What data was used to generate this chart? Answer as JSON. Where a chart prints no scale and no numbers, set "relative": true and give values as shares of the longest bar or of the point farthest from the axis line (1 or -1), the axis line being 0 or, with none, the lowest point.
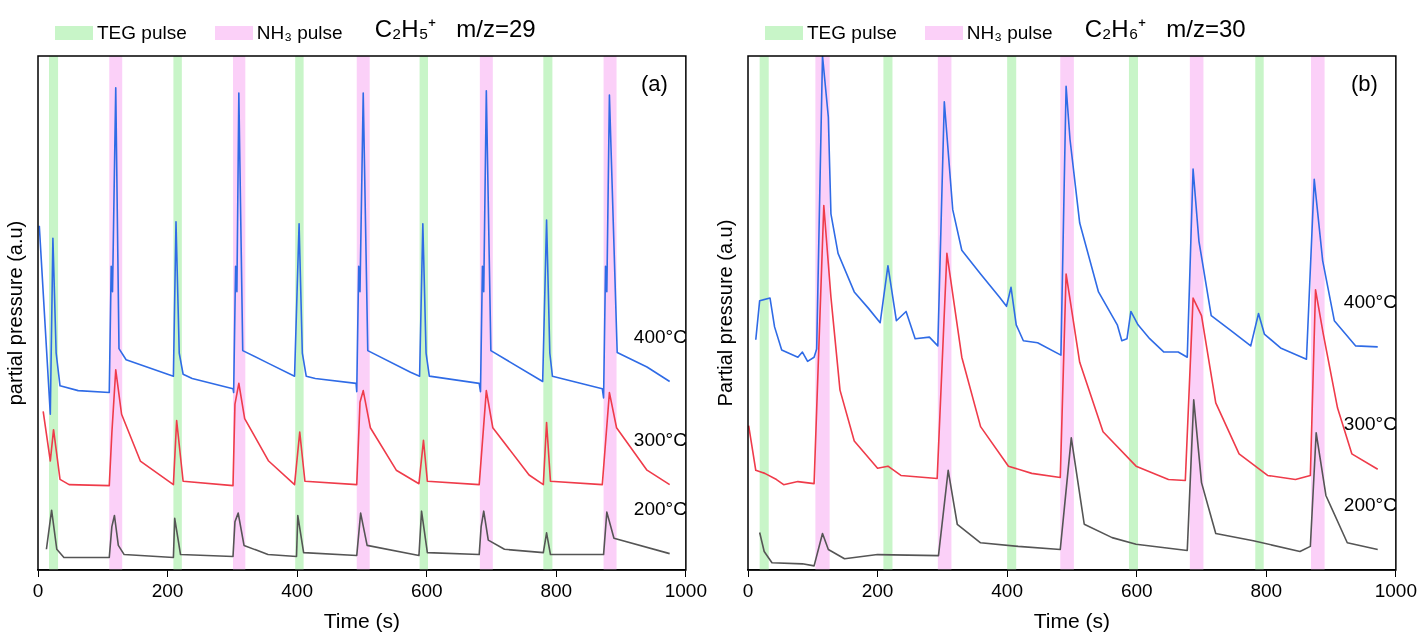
{
  "chart_data": [
    {
      "type": "line",
      "title": "C₂H₅⁺   m/z=29",
      "xlabel": "Time (s)",
      "ylabel": "partial pressure (a.u)",
      "relative": true,
      "xlim": [
        0,
        1000
      ],
      "xticks": [
        0,
        200,
        400,
        600,
        800,
        1000
      ],
      "grid": false,
      "legend": "top",
      "marker": "none",
      "line_style": "solid",
      "annotations": [
        "(a)"
      ],
      "bands": [
        {
          "axis": "x",
          "from": 17,
          "to": 31,
          "label": "TEG pulse",
          "color": "#c8f5c8"
        },
        {
          "axis": "x",
          "from": 110,
          "to": 130,
          "label": "NH₃ pulse",
          "color": "#fbd0f8"
        },
        {
          "axis": "x",
          "from": 209,
          "to": 222,
          "color": "#c8f5c8"
        },
        {
          "axis": "x",
          "from": 301,
          "to": 320,
          "color": "#fbd0f8"
        },
        {
          "axis": "x",
          "from": 397,
          "to": 410,
          "color": "#c8f5c8"
        },
        {
          "axis": "x",
          "from": 492,
          "to": 512,
          "color": "#fbd0f8"
        },
        {
          "axis": "x",
          "from": 589,
          "to": 602,
          "color": "#c8f5c8"
        },
        {
          "axis": "x",
          "from": 682,
          "to": 702,
          "color": "#fbd0f8"
        },
        {
          "axis": "x",
          "from": 780,
          "to": 794,
          "color": "#c8f5c8"
        },
        {
          "axis": "x",
          "from": 873,
          "to": 893,
          "color": "#fbd0f8"
        }
      ],
      "series": [
        {
          "name": "400°C",
          "color": "#2f6be6",
          "x": [
            2,
            19,
            23,
            28,
            34,
            62,
            110,
            113,
            115,
            120,
            125,
            136,
            209,
            213,
            218,
            224,
            238,
            301,
            302,
            305,
            307,
            310,
            316,
            355,
            396,
            403,
            408,
            414,
            428,
            491,
            492,
            495,
            497,
            502,
            509,
            575,
            589,
            594,
            599,
            604,
            681,
            683,
            686,
            688,
            692,
            699,
            779,
            785,
            790,
            794,
            871,
            873,
            876,
            878,
            882,
            894,
            940,
            975
          ],
          "values": [
            0.714,
            0.323,
            0.688,
            0.45,
            0.382,
            0.372,
            0.368,
            0.63,
            0.577,
            1.0,
            0.459,
            0.436,
            0.402,
            0.722,
            0.45,
            0.406,
            0.397,
            0.376,
            0.368,
            0.63,
            0.577,
            0.989,
            0.455,
            0.429,
            0.402,
            0.718,
            0.45,
            0.402,
            0.397,
            0.387,
            0.37,
            0.63,
            0.577,
            0.989,
            0.455,
            0.41,
            0.402,
            0.718,
            0.45,
            0.402,
            0.387,
            0.37,
            0.63,
            0.577,
            0.994,
            0.455,
            0.391,
            0.726,
            0.45,
            0.402,
            0.376,
            0.357,
            0.63,
            0.577,
            0.985,
            0.451,
            0.421,
            0.391
          ]
        },
        {
          "name": "300°C",
          "color": "#ef3b4a",
          "x": [
            8,
            19,
            24,
            34,
            48,
            110,
            114,
            120,
            129,
            158,
            209,
            214,
            224,
            301,
            304,
            310,
            319,
            356,
            396,
            404,
            412,
            492,
            497,
            502,
            513,
            553,
            588,
            595,
            601,
            681,
            692,
            702,
            758,
            780,
            785,
            791,
            871,
            882,
            893,
            940,
            975
          ],
          "values": [
            0.329,
            0.226,
            0.291,
            0.188,
            0.177,
            0.175,
            0.284,
            0.415,
            0.323,
            0.226,
            0.177,
            0.31,
            0.184,
            0.175,
            0.344,
            0.387,
            0.314,
            0.226,
            0.177,
            0.286,
            0.184,
            0.177,
            0.348,
            0.372,
            0.295,
            0.207,
            0.179,
            0.269,
            0.184,
            0.177,
            0.372,
            0.295,
            0.197,
            0.177,
            0.306,
            0.184,
            0.177,
            0.368,
            0.295,
            0.207,
            0.177
          ]
        },
        {
          "name": "200°C",
          "color": "#555555",
          "x": [
            13,
            21,
            29,
            40,
            110,
            114,
            118,
            124,
            133,
            209,
            211,
            220,
            301,
            304,
            309,
            318,
            355,
            399,
            401,
            410,
            492,
            498,
            508,
            588,
            592,
            601,
            681,
            684,
            688,
            695,
            720,
            780,
            785,
            791,
            873,
            878,
            889,
            975
          ],
          "values": [
            0.043,
            0.124,
            0.043,
            0.026,
            0.026,
            0.09,
            0.113,
            0.051,
            0.032,
            0.026,
            0.107,
            0.032,
            0.028,
            0.1,
            0.118,
            0.051,
            0.032,
            0.028,
            0.113,
            0.036,
            0.03,
            0.118,
            0.051,
            0.03,
            0.122,
            0.036,
            0.032,
            0.09,
            0.122,
            0.062,
            0.043,
            0.036,
            0.077,
            0.032,
            0.032,
            0.12,
            0.066,
            0.034
          ]
        }
      ]
    },
    {
      "type": "line",
      "title": "C₂H₆⁺   m/z=30",
      "xlabel": "Time (s)",
      "ylabel": "Partial pressure (a.u)",
      "relative": true,
      "xlim": [
        0,
        1000
      ],
      "xticks": [
        0,
        200,
        400,
        600,
        800,
        1000
      ],
      "grid": false,
      "legend": "top",
      "marker": "none",
      "line_style": "solid",
      "annotations": [
        "(b)"
      ],
      "bands": [
        {
          "axis": "x",
          "from": 18,
          "to": 32,
          "label": "TEG pulse",
          "color": "#c8f5c8"
        },
        {
          "axis": "x",
          "from": 104,
          "to": 126,
          "label": "NH₃ pulse",
          "color": "#fbd0f8"
        },
        {
          "axis": "x",
          "from": 209,
          "to": 223,
          "color": "#c8f5c8"
        },
        {
          "axis": "x",
          "from": 293,
          "to": 314,
          "color": "#fbd0f8"
        },
        {
          "axis": "x",
          "from": 400,
          "to": 414,
          "color": "#c8f5c8"
        },
        {
          "axis": "x",
          "from": 482,
          "to": 503,
          "color": "#fbd0f8"
        },
        {
          "axis": "x",
          "from": 588,
          "to": 602,
          "color": "#c8f5c8"
        },
        {
          "axis": "x",
          "from": 682,
          "to": 703,
          "color": "#fbd0f8"
        },
        {
          "axis": "x",
          "from": 783,
          "to": 796,
          "color": "#c8f5c8"
        },
        {
          "axis": "x",
          "from": 869,
          "to": 890,
          "color": "#fbd0f8"
        }
      ],
      "series": [
        {
          "name": "400°C",
          "color": "#2f6be6",
          "x": [
            12,
            18,
            34,
            41,
            52,
            77,
            84,
            92,
            102,
            106,
            115,
            124,
            128,
            139,
            164,
            186,
            204,
            216,
            229,
            244,
            258,
            280,
            293,
            303,
            316,
            330,
            359,
            388,
            399,
            406,
            414,
            425,
            447,
            483,
            491,
            497,
            512,
            541,
            570,
            577,
            585,
            591,
            602,
            620,
            642,
            664,
            678,
            687,
            696,
            715,
            744,
            776,
            788,
            797,
            822,
            862,
            874,
            887,
            905,
            938,
            972
          ],
          "values": [
            0.448,
            0.524,
            0.529,
            0.473,
            0.428,
            0.414,
            0.424,
            0.406,
            0.414,
            0.43,
            1.0,
            0.881,
            0.693,
            0.616,
            0.541,
            0.509,
            0.481,
            0.592,
            0.485,
            0.503,
            0.45,
            0.453,
            0.436,
            0.911,
            0.701,
            0.622,
            0.576,
            0.531,
            0.513,
            0.55,
            0.477,
            0.446,
            0.442,
            0.418,
            0.941,
            0.838,
            0.675,
            0.541,
            0.477,
            0.446,
            0.45,
            0.503,
            0.477,
            0.45,
            0.424,
            0.424,
            0.414,
            0.78,
            0.64,
            0.495,
            0.467,
            0.436,
            0.499,
            0.459,
            0.432,
            0.41,
            0.76,
            0.602,
            0.485,
            0.436,
            0.434
          ]
        },
        {
          "name": "300°C",
          "color": "#ef3b4a",
          "x": [
            1,
            12,
            26,
            44,
            55,
            77,
            102,
            117,
            128,
            142,
            164,
            200,
            216,
            236,
            292,
            307,
            330,
            359,
            402,
            438,
            482,
            491,
            512,
            548,
            599,
            649,
            675,
            687,
            700,
            722,
            758,
            802,
            845,
            868,
            876,
            888,
            910,
            932,
            972
          ],
          "values": [
            0.281,
            0.194,
            0.188,
            0.176,
            0.166,
            0.172,
            0.168,
            0.709,
            0.531,
            0.35,
            0.251,
            0.198,
            0.202,
            0.184,
            0.178,
            0.616,
            0.414,
            0.279,
            0.202,
            0.188,
            0.18,
            0.576,
            0.404,
            0.269,
            0.202,
            0.176,
            0.174,
            0.529,
            0.495,
            0.325,
            0.226,
            0.184,
            0.176,
            0.184,
            0.545,
            0.459,
            0.315,
            0.226,
            0.196
          ]
        },
        {
          "name": "200°C",
          "color": "#555555",
          "x": [
            18,
            25,
            37,
            84,
            102,
            115,
            124,
            149,
            200,
            294,
            309,
            323,
            359,
            417,
            482,
            499,
            519,
            562,
            599,
            678,
            688,
            700,
            722,
            780,
            852,
            868,
            877,
            892,
            925,
            972
          ],
          "values": [
            0.073,
            0.036,
            0.014,
            0.012,
            0.008,
            0.071,
            0.04,
            0.022,
            0.03,
            0.028,
            0.194,
            0.089,
            0.053,
            0.046,
            0.04,
            0.257,
            0.089,
            0.063,
            0.05,
            0.038,
            0.331,
            0.17,
            0.071,
            0.057,
            0.036,
            0.046,
            0.267,
            0.145,
            0.053,
            0.04
          ]
        }
      ]
    }
  ]
}
